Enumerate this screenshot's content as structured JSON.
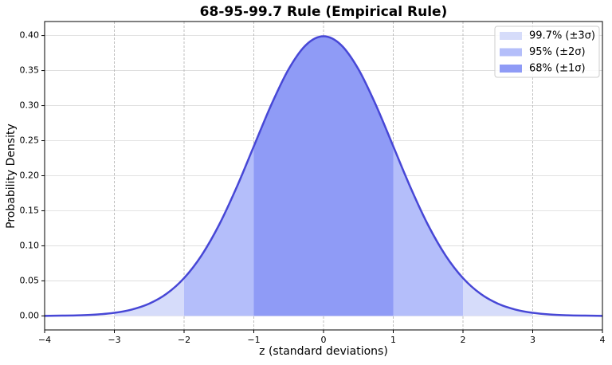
{
  "chart_data": {
    "type": "area",
    "title": "68-95-99.7 Rule (Empirical Rule)",
    "x_label": "z (standard deviations)",
    "y_label": "Probability Density",
    "xlim": [
      -4,
      4
    ],
    "ylim": [
      -0.02,
      0.42
    ],
    "xticks": [
      {
        "value": -4,
        "label": "−4"
      },
      {
        "value": -3,
        "label": "−3"
      },
      {
        "value": -2,
        "label": "−2"
      },
      {
        "value": -1,
        "label": "−1"
      },
      0,
      1,
      2,
      3,
      4
    ],
    "yticks": [
      {
        "value": 0,
        "label": "0.00"
      },
      0.05,
      {
        "value": 0.1,
        "label": "0.10"
      },
      0.15,
      {
        "value": 0.2,
        "label": "0.20"
      },
      0.25,
      {
        "value": 0.3,
        "label": "0.30"
      },
      0.35,
      {
        "value": 0.4,
        "label": "0.40"
      }
    ],
    "grid": true,
    "legend": "upper right",
    "curve": {
      "color": "#4747d6",
      "x": [
        -4,
        -3.75,
        -3.5,
        -3.25,
        -3,
        -2.75,
        -2.5,
        -2.25,
        -2,
        -1.75,
        -1.5,
        -1.25,
        -1,
        -0.75,
        -0.5,
        -0.25,
        0,
        0.25,
        0.5,
        0.75,
        1,
        1.25,
        1.5,
        1.75,
        2,
        2.25,
        2.5,
        2.75,
        3,
        3.25,
        3.5,
        3.75,
        4
      ],
      "values": [
        0.0001,
        0.0004,
        0.0009,
        0.002,
        0.0044,
        0.0091,
        0.0175,
        0.0317,
        0.054,
        0.0863,
        0.1295,
        0.1826,
        0.242,
        0.3011,
        0.3521,
        0.3867,
        0.3989,
        0.3867,
        0.3521,
        0.3011,
        0.242,
        0.1826,
        0.1295,
        0.0863,
        0.054,
        0.0317,
        0.0175,
        0.0091,
        0.0044,
        0.002,
        0.0009,
        0.0004,
        0.0001
      ]
    },
    "series": [
      {
        "name": "99.7% (±3σ)",
        "color": "#d6dcfa",
        "x": [
          -3,
          -2.75,
          -2.5,
          -2.25,
          -2,
          -1.75,
          -1.5,
          -1.25,
          -1,
          -0.75,
          -0.5,
          -0.25,
          0,
          0.25,
          0.5,
          0.75,
          1,
          1.25,
          1.5,
          1.75,
          2,
          2.25,
          2.5,
          2.75,
          3
        ],
        "values": [
          0.0044,
          0.0091,
          0.0175,
          0.0317,
          0.054,
          0.0863,
          0.1295,
          0.1826,
          0.242,
          0.3011,
          0.3521,
          0.3867,
          0.3989,
          0.3867,
          0.3521,
          0.3011,
          0.242,
          0.1826,
          0.1295,
          0.0863,
          0.054,
          0.0317,
          0.0175,
          0.0091,
          0.0044
        ]
      },
      {
        "name": "95% (±2σ)",
        "color": "#b4befa",
        "x": [
          -2,
          -1.75,
          -1.5,
          -1.25,
          -1,
          -0.75,
          -0.5,
          -0.25,
          0,
          0.25,
          0.5,
          0.75,
          1,
          1.25,
          1.5,
          1.75,
          2
        ],
        "values": [
          0.054,
          0.0863,
          0.1295,
          0.1826,
          0.242,
          0.3011,
          0.3521,
          0.3867,
          0.3989,
          0.3867,
          0.3521,
          0.3011,
          0.242,
          0.1826,
          0.1295,
          0.0863,
          0.054
        ]
      },
      {
        "name": "68% (±1σ)",
        "color": "#8f9bf6",
        "x": [
          -1,
          -0.75,
          -0.5,
          -0.25,
          0,
          0.25,
          0.5,
          0.75,
          1
        ],
        "values": [
          0.242,
          0.3011,
          0.3521,
          0.3867,
          0.3989,
          0.3867,
          0.3521,
          0.3011,
          0.242
        ]
      }
    ]
  }
}
